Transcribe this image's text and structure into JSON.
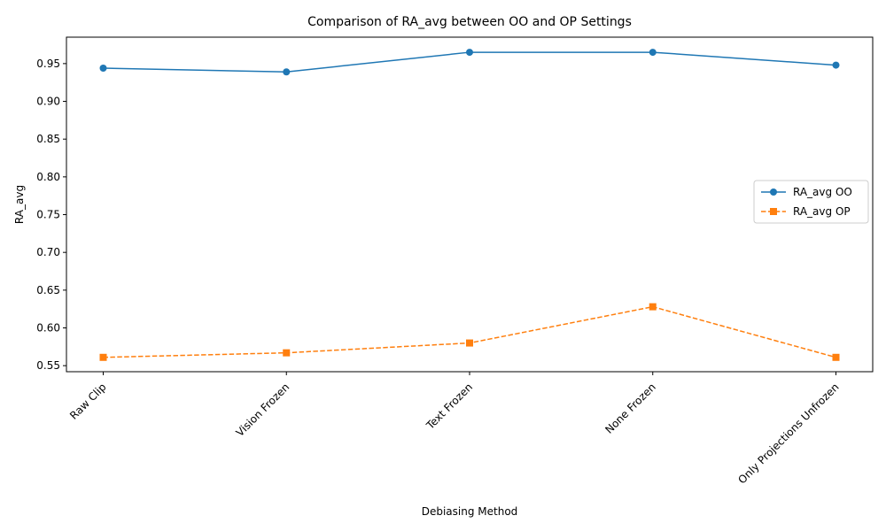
{
  "chart_data": {
    "type": "line",
    "title": "Comparison of RA_avg between OO and OP Settings",
    "xlabel": "Debiasing Method",
    "ylabel": "RA_avg",
    "categories": [
      "Raw Clip",
      "Vision Frozen",
      "Text Frozen",
      "None Frozen",
      "Only Projections Unfrozen"
    ],
    "ylim": [
      0.542,
      0.985
    ],
    "yticks": [
      "0.55",
      "0.60",
      "0.65",
      "0.70",
      "0.75",
      "0.80",
      "0.85",
      "0.90",
      "0.95"
    ],
    "grid": false,
    "legend_position": "center-right",
    "series": [
      {
        "name": "RA_avg OO",
        "values": [
          0.944,
          0.939,
          0.965,
          0.965,
          0.948
        ],
        "color": "#1f77b4",
        "marker": "circle",
        "linestyle": "solid"
      },
      {
        "name": "RA_avg OP",
        "values": [
          0.561,
          0.567,
          0.58,
          0.628,
          0.561
        ],
        "color": "#ff7f0e",
        "marker": "square",
        "linestyle": "dashed"
      }
    ]
  }
}
